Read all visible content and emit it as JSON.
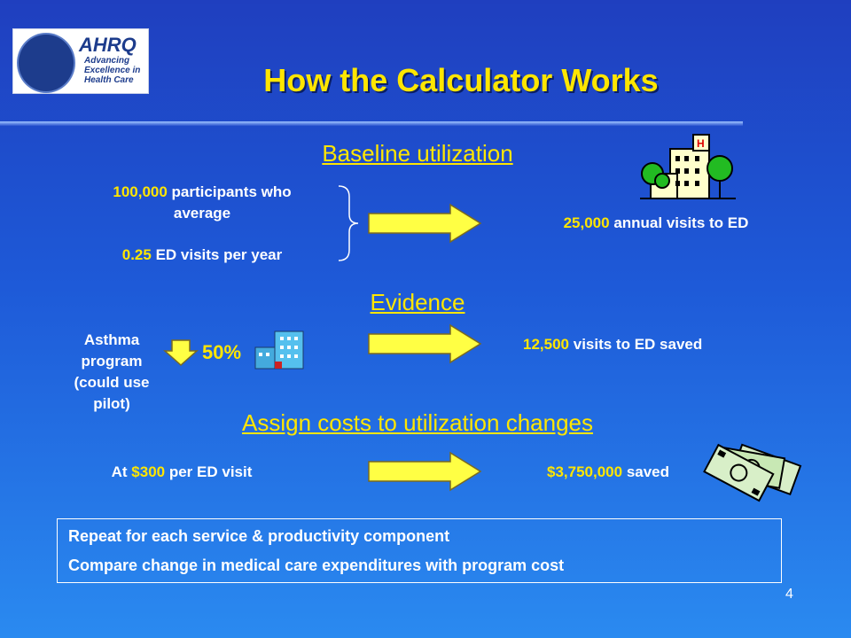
{
  "logo": {
    "ahrq": "AHRQ",
    "tagline": [
      "Advancing",
      "Excellence in",
      "Health Care"
    ]
  },
  "title": "How the Calculator Works",
  "baseline": {
    "heading": "Baseline utilization",
    "participants_num": "100,000",
    "participants_rest": "participants who",
    "average": "average",
    "visits_num": "0.25",
    "visits_rest": "ED visits per year",
    "result_num": "25,000",
    "result_rest": "annual visits to ED"
  },
  "evidence": {
    "heading": "Evidence",
    "program": [
      "Asthma",
      "program",
      "(could use",
      "pilot)"
    ],
    "percent": "50%",
    "result_num": "12,500",
    "result_rest": "visits to ED saved"
  },
  "costs": {
    "heading": "Assign costs to utilization changes",
    "at": "At",
    "cost_num": "$300",
    "cost_rest": "per ED visit",
    "saved_num": "$3,750,000",
    "saved_rest": "saved"
  },
  "box": {
    "line1": "Repeat for each service & productivity component",
    "line2": "Compare change in medical care expenditures with program cost"
  },
  "page_number": "4",
  "colors": {
    "accent": "#ffe600",
    "arrow_fill": "#ffff44",
    "text": "#ffffff"
  }
}
